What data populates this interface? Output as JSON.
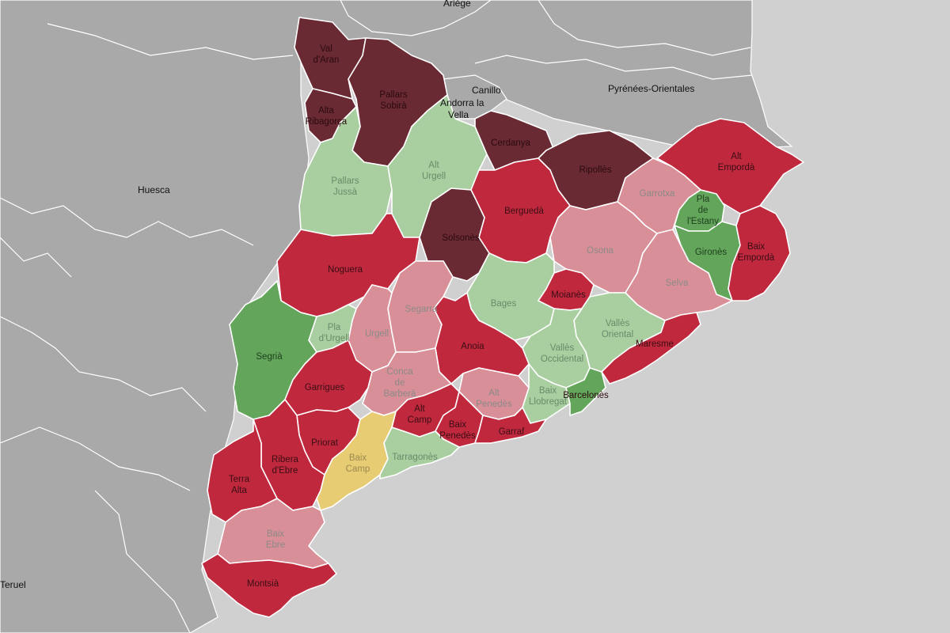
{
  "colors": {
    "sea": "#d0d0d0",
    "land": "#a9a9a9",
    "dark_maroon": "#6a2a33",
    "red": "#c0293d",
    "pink": "#d98f97",
    "light_green": "#a9cfa1",
    "green": "#63a55a",
    "yellow": "#e7cc74"
  },
  "places": [
    {
      "id": "ariege",
      "name": "Ariège"
    },
    {
      "id": "canillo",
      "name": "Canillo"
    },
    {
      "id": "andorra1",
      "name": "Andorra la"
    },
    {
      "id": "andorra2",
      "name": "Vella"
    },
    {
      "id": "pyrenees",
      "name": "Pyrénées-Orientales"
    },
    {
      "id": "huesca",
      "name": "Huesca"
    },
    {
      "id": "teruel",
      "name": "Teruel"
    }
  ],
  "comarques": [
    {
      "id": "val-d-aran",
      "lines": [
        "Val",
        "d'Aran"
      ],
      "category": "dark_maroon"
    },
    {
      "id": "pallars-sobira",
      "lines": [
        "Pallars",
        "Sobirà"
      ],
      "category": "dark_maroon"
    },
    {
      "id": "alta-ribagorca",
      "lines": [
        "Alta",
        "Ribagorça"
      ],
      "category": "dark_maroon"
    },
    {
      "id": "pallars-jussa",
      "lines": [
        "Pallars",
        "Jussà"
      ],
      "category": "light_green"
    },
    {
      "id": "alt-urgell",
      "lines": [
        "Alt",
        "Urgell"
      ],
      "category": "light_green"
    },
    {
      "id": "cerdanya",
      "lines": [
        "Cerdanya"
      ],
      "category": "dark_maroon"
    },
    {
      "id": "ripolles",
      "lines": [
        "Ripollès"
      ],
      "category": "dark_maroon"
    },
    {
      "id": "alt-emporda",
      "lines": [
        "Alt",
        "Empordà"
      ],
      "category": "red"
    },
    {
      "id": "garrotxa",
      "lines": [
        "Garrotxa"
      ],
      "category": "pink"
    },
    {
      "id": "pla-de-l-estany",
      "lines": [
        "Pla",
        "de",
        "l'Estany"
      ],
      "category": "green"
    },
    {
      "id": "girones",
      "lines": [
        "Gironès"
      ],
      "category": "green"
    },
    {
      "id": "baix-emporda",
      "lines": [
        "Baix",
        "Empordà"
      ],
      "category": "red"
    },
    {
      "id": "bergueda",
      "lines": [
        "Berguedà"
      ],
      "category": "red"
    },
    {
      "id": "solsones",
      "lines": [
        "Solsonès"
      ],
      "category": "dark_maroon"
    },
    {
      "id": "osona",
      "lines": [
        "Osona"
      ],
      "category": "pink"
    },
    {
      "id": "selva",
      "lines": [
        "Selva"
      ],
      "category": "pink"
    },
    {
      "id": "noguera",
      "lines": [
        "Noguera"
      ],
      "category": "red"
    },
    {
      "id": "bages",
      "lines": [
        "Bages"
      ],
      "category": "light_green"
    },
    {
      "id": "moianes",
      "lines": [
        "Moianès"
      ],
      "category": "red"
    },
    {
      "id": "segarra",
      "lines": [
        "Segarra"
      ],
      "category": "pink"
    },
    {
      "id": "urgell",
      "lines": [
        "Urgell"
      ],
      "category": "pink"
    },
    {
      "id": "pla-d-urgell",
      "lines": [
        "Pla",
        "d'Urgell"
      ],
      "category": "light_green"
    },
    {
      "id": "segria",
      "lines": [
        "Segrià"
      ],
      "category": "green"
    },
    {
      "id": "vall-oriental",
      "lines": [
        "Vallès",
        "Oriental"
      ],
      "category": "light_green"
    },
    {
      "id": "vall-occidental",
      "lines": [
        "Vallès",
        "Occidental"
      ],
      "category": "light_green"
    },
    {
      "id": "maresme",
      "lines": [
        "Maresme"
      ],
      "category": "red"
    },
    {
      "id": "anoia",
      "lines": [
        "Anoia"
      ],
      "category": "red"
    },
    {
      "id": "garrigues",
      "lines": [
        "Garrigues"
      ],
      "category": "red"
    },
    {
      "id": "conca-de-barbera",
      "lines": [
        "Conca",
        "de",
        "Barberà"
      ],
      "category": "pink"
    },
    {
      "id": "alt-penedes",
      "lines": [
        "Alt",
        "Penedès"
      ],
      "category": "pink"
    },
    {
      "id": "baix-llobregat",
      "lines": [
        "Baix",
        "Llobregat"
      ],
      "category": "light_green"
    },
    {
      "id": "barcelones",
      "lines": [
        "Barcelonès"
      ],
      "category": "green"
    },
    {
      "id": "alt-camp",
      "lines": [
        "Alt",
        "Camp"
      ],
      "category": "red"
    },
    {
      "id": "baix-penedes",
      "lines": [
        "Baix",
        "Penedès"
      ],
      "category": "red"
    },
    {
      "id": "garraf",
      "lines": [
        "Garraf"
      ],
      "category": "red"
    },
    {
      "id": "priorat",
      "lines": [
        "Priorat"
      ],
      "category": "red"
    },
    {
      "id": "ribera-d-ebre",
      "lines": [
        "Ribera",
        "d'Ebre"
      ],
      "category": "red"
    },
    {
      "id": "baix-camp",
      "lines": [
        "Baix",
        "Camp"
      ],
      "category": "yellow"
    },
    {
      "id": "tarragones",
      "lines": [
        "Tarragonès"
      ],
      "category": "light_green"
    },
    {
      "id": "terra-alta",
      "lines": [
        "Terra",
        "Alta"
      ],
      "category": "red"
    },
    {
      "id": "baix-ebre",
      "lines": [
        "Baix",
        "Ebre"
      ],
      "category": "pink"
    },
    {
      "id": "montsia",
      "lines": [
        "Montsià"
      ],
      "category": "red"
    }
  ]
}
